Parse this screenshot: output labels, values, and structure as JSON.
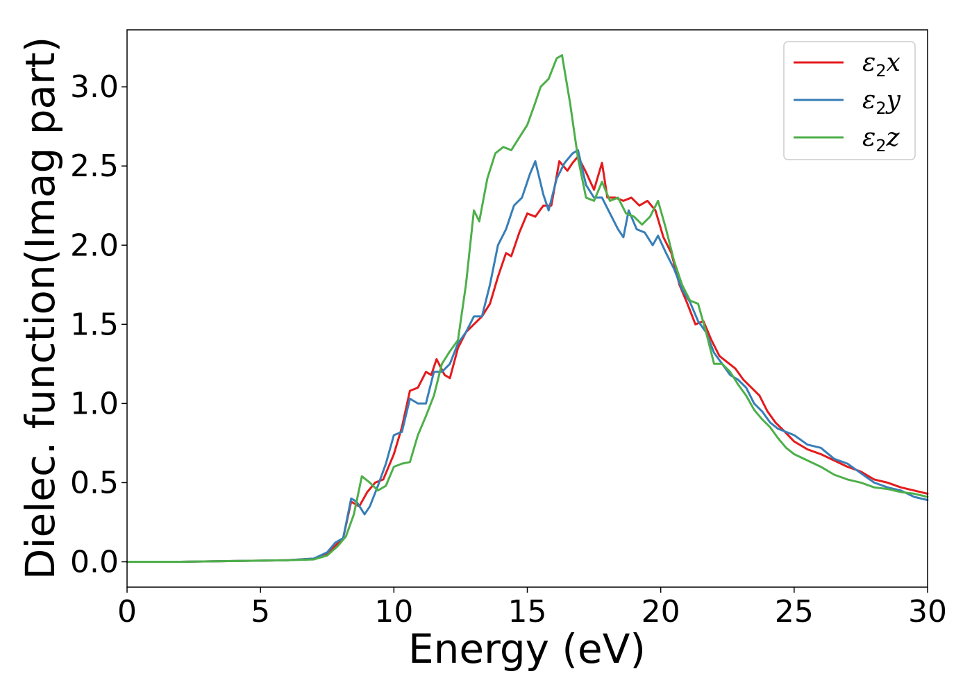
{
  "chart_data": {
    "type": "line",
    "xlabel": "Energy (eV)",
    "ylabel": "Dielec. function(Imag part)",
    "xlim": [
      0,
      30
    ],
    "ylim": [
      -0.16,
      3.36
    ],
    "xticks": [
      0,
      5,
      10,
      15,
      20,
      25,
      30
    ],
    "xtick_labels": [
      "0",
      "5",
      "10",
      "15",
      "20",
      "25",
      "30"
    ],
    "yticks": [
      0.0,
      0.5,
      1.0,
      1.5,
      2.0,
      2.5,
      3.0
    ],
    "ytick_labels": [
      "0.0",
      "0.5",
      "1.0",
      "1.5",
      "2.0",
      "2.5",
      "3.0"
    ],
    "grid": false,
    "legend_position": "top-right",
    "series": [
      {
        "name": "ε2x",
        "legend_main": "ε",
        "legend_sub": "2",
        "legend_var": "x",
        "color": "#e41a1c",
        "points": [
          [
            0,
            0.0
          ],
          [
            2,
            0.0
          ],
          [
            4,
            0.005
          ],
          [
            6,
            0.01
          ],
          [
            7,
            0.02
          ],
          [
            7.5,
            0.05
          ],
          [
            7.8,
            0.1
          ],
          [
            8.1,
            0.15
          ],
          [
            8.4,
            0.38
          ],
          [
            8.7,
            0.35
          ],
          [
            9,
            0.44
          ],
          [
            9.3,
            0.5
          ],
          [
            9.6,
            0.52
          ],
          [
            10,
            0.68
          ],
          [
            10.3,
            0.85
          ],
          [
            10.6,
            1.08
          ],
          [
            10.9,
            1.1
          ],
          [
            11.2,
            1.2
          ],
          [
            11.4,
            1.18
          ],
          [
            11.6,
            1.28
          ],
          [
            11.9,
            1.18
          ],
          [
            12.1,
            1.16
          ],
          [
            12.4,
            1.35
          ],
          [
            12.7,
            1.45
          ],
          [
            13,
            1.5
          ],
          [
            13.3,
            1.55
          ],
          [
            13.6,
            1.63
          ],
          [
            13.9,
            1.8
          ],
          [
            14.2,
            1.95
          ],
          [
            14.4,
            1.93
          ],
          [
            14.7,
            2.08
          ],
          [
            15,
            2.2
          ],
          [
            15.3,
            2.18
          ],
          [
            15.6,
            2.25
          ],
          [
            15.9,
            2.25
          ],
          [
            16.2,
            2.53
          ],
          [
            16.5,
            2.47
          ],
          [
            16.7,
            2.52
          ],
          [
            16.9,
            2.56
          ],
          [
            17.2,
            2.46
          ],
          [
            17.5,
            2.35
          ],
          [
            17.8,
            2.52
          ],
          [
            18,
            2.3
          ],
          [
            18.3,
            2.3
          ],
          [
            18.6,
            2.28
          ],
          [
            18.9,
            2.3
          ],
          [
            19.2,
            2.25
          ],
          [
            19.5,
            2.28
          ],
          [
            19.8,
            2.22
          ],
          [
            20.1,
            2.05
          ],
          [
            20.4,
            1.95
          ],
          [
            20.7,
            1.75
          ],
          [
            21,
            1.63
          ],
          [
            21.3,
            1.5
          ],
          [
            21.6,
            1.52
          ],
          [
            21.9,
            1.4
          ],
          [
            22.2,
            1.3
          ],
          [
            22.5,
            1.26
          ],
          [
            22.8,
            1.22
          ],
          [
            23.1,
            1.15
          ],
          [
            23.4,
            1.1
          ],
          [
            23.7,
            1.05
          ],
          [
            24,
            0.95
          ],
          [
            24.3,
            0.88
          ],
          [
            24.6,
            0.83
          ],
          [
            25,
            0.76
          ],
          [
            25.5,
            0.71
          ],
          [
            26,
            0.68
          ],
          [
            26.5,
            0.64
          ],
          [
            27,
            0.6
          ],
          [
            27.5,
            0.57
          ],
          [
            28,
            0.52
          ],
          [
            28.5,
            0.5
          ],
          [
            29,
            0.47
          ],
          [
            29.5,
            0.45
          ],
          [
            30,
            0.43
          ]
        ]
      },
      {
        "name": "ε2y",
        "legend_main": "ε",
        "legend_sub": "2",
        "legend_var": "y",
        "color": "#377eb8",
        "points": [
          [
            0,
            0.0
          ],
          [
            2,
            0.0
          ],
          [
            4,
            0.005
          ],
          [
            6,
            0.01
          ],
          [
            7,
            0.02
          ],
          [
            7.5,
            0.06
          ],
          [
            7.8,
            0.12
          ],
          [
            8.1,
            0.15
          ],
          [
            8.4,
            0.4
          ],
          [
            8.6,
            0.38
          ],
          [
            8.9,
            0.3
          ],
          [
            9.1,
            0.35
          ],
          [
            9.4,
            0.48
          ],
          [
            9.7,
            0.62
          ],
          [
            10,
            0.8
          ],
          [
            10.3,
            0.82
          ],
          [
            10.6,
            1.03
          ],
          [
            10.9,
            1.0
          ],
          [
            11.2,
            1.0
          ],
          [
            11.5,
            1.2
          ],
          [
            11.8,
            1.2
          ],
          [
            12.1,
            1.25
          ],
          [
            12.4,
            1.38
          ],
          [
            12.7,
            1.45
          ],
          [
            13,
            1.55
          ],
          [
            13.3,
            1.55
          ],
          [
            13.6,
            1.75
          ],
          [
            13.9,
            2.0
          ],
          [
            14.2,
            2.1
          ],
          [
            14.5,
            2.25
          ],
          [
            14.8,
            2.3
          ],
          [
            15.1,
            2.45
          ],
          [
            15.3,
            2.53
          ],
          [
            15.6,
            2.32
          ],
          [
            15.8,
            2.22
          ],
          [
            16.1,
            2.42
          ],
          [
            16.4,
            2.52
          ],
          [
            16.7,
            2.58
          ],
          [
            16.9,
            2.6
          ],
          [
            17.2,
            2.38
          ],
          [
            17.5,
            2.3
          ],
          [
            17.8,
            2.3
          ],
          [
            18.1,
            2.2
          ],
          [
            18.4,
            2.1
          ],
          [
            18.6,
            2.05
          ],
          [
            18.8,
            2.22
          ],
          [
            19.1,
            2.1
          ],
          [
            19.4,
            2.08
          ],
          [
            19.7,
            2.0
          ],
          [
            19.9,
            2.06
          ],
          [
            20.2,
            1.95
          ],
          [
            20.5,
            1.85
          ],
          [
            20.8,
            1.72
          ],
          [
            21.1,
            1.64
          ],
          [
            21.4,
            1.52
          ],
          [
            21.7,
            1.45
          ],
          [
            22,
            1.32
          ],
          [
            22.3,
            1.25
          ],
          [
            22.6,
            1.18
          ],
          [
            22.9,
            1.15
          ],
          [
            23.2,
            1.1
          ],
          [
            23.5,
            1.0
          ],
          [
            23.8,
            0.95
          ],
          [
            24.1,
            0.88
          ],
          [
            24.4,
            0.84
          ],
          [
            24.7,
            0.82
          ],
          [
            25,
            0.8
          ],
          [
            25.5,
            0.74
          ],
          [
            26,
            0.72
          ],
          [
            26.5,
            0.65
          ],
          [
            27,
            0.62
          ],
          [
            27.5,
            0.56
          ],
          [
            28,
            0.5
          ],
          [
            28.5,
            0.47
          ],
          [
            29,
            0.45
          ],
          [
            29.5,
            0.41
          ],
          [
            30,
            0.39
          ]
        ]
      },
      {
        "name": "ε2z",
        "legend_main": "ε",
        "legend_sub": "2",
        "legend_var": "z",
        "color": "#4daf4a",
        "points": [
          [
            0,
            0.0
          ],
          [
            2,
            0.0
          ],
          [
            4,
            0.005
          ],
          [
            6,
            0.01
          ],
          [
            7,
            0.015
          ],
          [
            7.5,
            0.04
          ],
          [
            7.9,
            0.1
          ],
          [
            8.2,
            0.16
          ],
          [
            8.5,
            0.3
          ],
          [
            8.8,
            0.54
          ],
          [
            9.1,
            0.5
          ],
          [
            9.4,
            0.45
          ],
          [
            9.7,
            0.48
          ],
          [
            10,
            0.6
          ],
          [
            10.3,
            0.62
          ],
          [
            10.6,
            0.63
          ],
          [
            10.9,
            0.8
          ],
          [
            11.2,
            0.92
          ],
          [
            11.5,
            1.05
          ],
          [
            11.8,
            1.25
          ],
          [
            12.1,
            1.33
          ],
          [
            12.4,
            1.4
          ],
          [
            12.7,
            1.75
          ],
          [
            13,
            2.22
          ],
          [
            13.2,
            2.15
          ],
          [
            13.5,
            2.42
          ],
          [
            13.8,
            2.58
          ],
          [
            14.1,
            2.62
          ],
          [
            14.4,
            2.6
          ],
          [
            14.7,
            2.68
          ],
          [
            15,
            2.76
          ],
          [
            15.3,
            2.9
          ],
          [
            15.5,
            3.0
          ],
          [
            15.8,
            3.05
          ],
          [
            16.1,
            3.18
          ],
          [
            16.3,
            3.2
          ],
          [
            16.6,
            2.9
          ],
          [
            16.9,
            2.55
          ],
          [
            17.2,
            2.3
          ],
          [
            17.5,
            2.28
          ],
          [
            17.8,
            2.4
          ],
          [
            18.1,
            2.28
          ],
          [
            18.4,
            2.3
          ],
          [
            18.7,
            2.2
          ],
          [
            19,
            2.18
          ],
          [
            19.3,
            2.13
          ],
          [
            19.6,
            2.18
          ],
          [
            19.9,
            2.28
          ],
          [
            20.2,
            2.1
          ],
          [
            20.5,
            1.9
          ],
          [
            20.8,
            1.75
          ],
          [
            21.1,
            1.65
          ],
          [
            21.4,
            1.63
          ],
          [
            21.7,
            1.45
          ],
          [
            22,
            1.25
          ],
          [
            22.3,
            1.25
          ],
          [
            22.6,
            1.2
          ],
          [
            22.9,
            1.12
          ],
          [
            23.2,
            1.05
          ],
          [
            23.5,
            0.96
          ],
          [
            23.8,
            0.9
          ],
          [
            24.1,
            0.85
          ],
          [
            24.4,
            0.78
          ],
          [
            24.7,
            0.72
          ],
          [
            25,
            0.68
          ],
          [
            25.5,
            0.64
          ],
          [
            26,
            0.6
          ],
          [
            26.5,
            0.55
          ],
          [
            27,
            0.52
          ],
          [
            27.5,
            0.5
          ],
          [
            28,
            0.47
          ],
          [
            28.5,
            0.46
          ],
          [
            29,
            0.44
          ],
          [
            29.5,
            0.43
          ],
          [
            30,
            0.41
          ]
        ]
      }
    ]
  }
}
